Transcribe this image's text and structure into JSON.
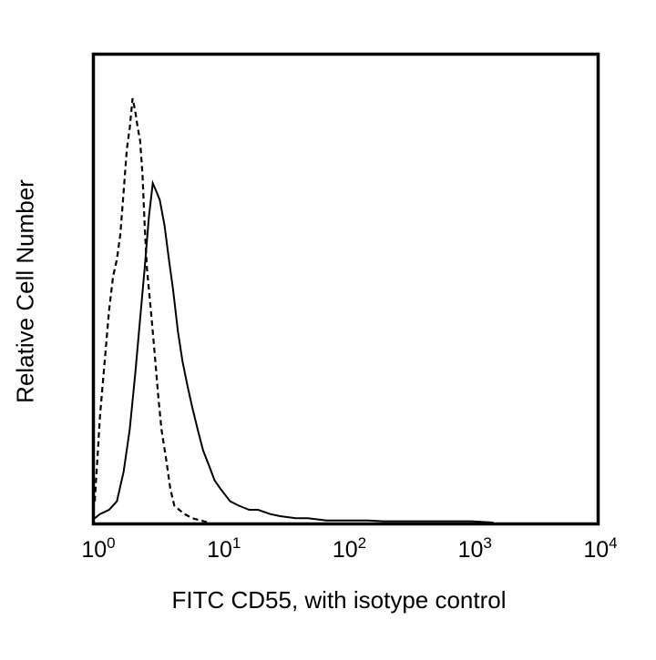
{
  "chart_data": {
    "type": "line",
    "title": "",
    "xlabel": "FITC CD55, with isotype control",
    "ylabel": "Relative Cell Number",
    "xscale": "log",
    "xlim": [
      1,
      10000
    ],
    "x_ticks": [
      {
        "base": "10",
        "exp": "0",
        "value": 1
      },
      {
        "base": "10",
        "exp": "1",
        "value": 10
      },
      {
        "base": "10",
        "exp": "2",
        "value": 100
      },
      {
        "base": "10",
        "exp": "3",
        "value": 1000
      },
      {
        "base": "10",
        "exp": "4",
        "value": 10000
      }
    ],
    "y_ticks": [],
    "grid": false,
    "legend": null,
    "series": [
      {
        "name": "isotype control",
        "style": "dashed",
        "color": "#000000",
        "x": [
          1.0,
          1.05,
          1.1,
          1.2,
          1.3,
          1.4,
          1.5,
          1.6,
          1.7,
          1.8,
          1.9,
          2.0,
          2.1,
          2.2,
          2.3,
          2.4,
          2.5,
          2.6,
          2.8,
          3.0,
          3.2,
          3.4,
          3.7,
          4.0,
          4.3,
          4.7,
          5.2,
          6.0,
          7.0,
          8.0
        ],
        "y": [
          5,
          15,
          25,
          38,
          50,
          58,
          62,
          68,
          78,
          88,
          93,
          100,
          97,
          93,
          90,
          82,
          70,
          60,
          50,
          40,
          30,
          22,
          15,
          8,
          4,
          3,
          2,
          1,
          0.5,
          0
        ]
      },
      {
        "name": "FITC CD55",
        "style": "solid",
        "color": "#000000",
        "x": [
          1.0,
          1.1,
          1.3,
          1.5,
          1.7,
          1.9,
          2.1,
          2.3,
          2.5,
          2.7,
          2.9,
          3.1,
          3.3,
          3.6,
          3.9,
          4.2,
          4.6,
          5.0,
          5.5,
          6.0,
          6.6,
          7.3,
          8.0,
          9.0,
          10,
          12,
          14,
          17,
          20,
          25,
          30,
          40,
          50,
          70,
          100,
          150,
          200,
          300,
          1000,
          1500
        ],
        "y": [
          1,
          2,
          3,
          5,
          12,
          22,
          35,
          48,
          60,
          72,
          80,
          78,
          76,
          70,
          62,
          55,
          45,
          38,
          32,
          27,
          22,
          17,
          14,
          10,
          8,
          5,
          4,
          3,
          3,
          2,
          1.5,
          1,
          1,
          0.5,
          0.5,
          0.5,
          0.3,
          0.3,
          0.3,
          0
        ]
      }
    ]
  }
}
